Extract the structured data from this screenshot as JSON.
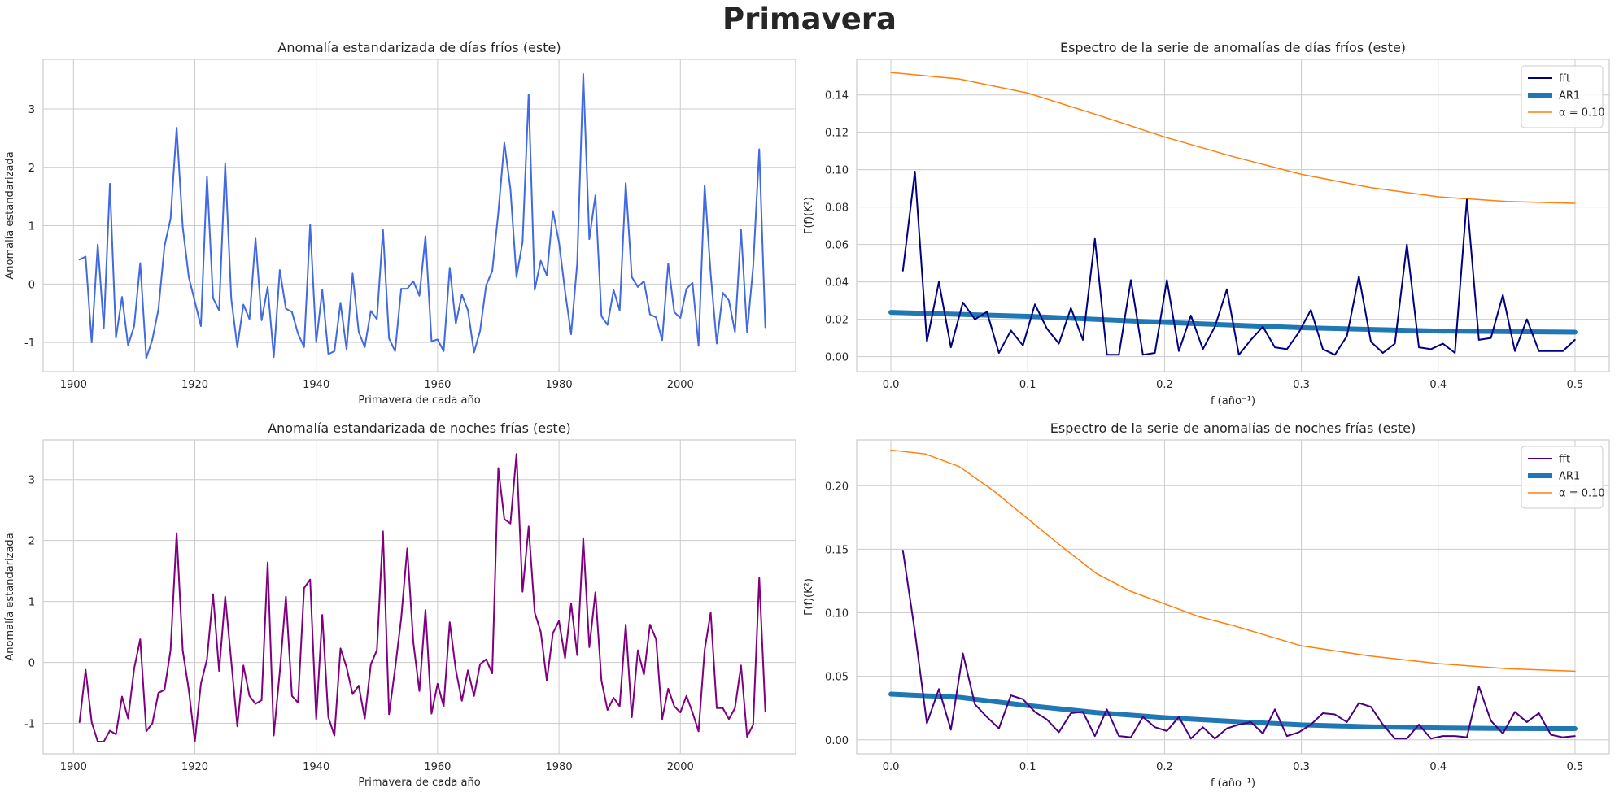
{
  "figure": {
    "title": "Primavera"
  },
  "colors": {
    "panel0": "#4169e1",
    "panel2": "#800080",
    "fft1": "#000080",
    "fft3": "#4b0082",
    "ar1": "#1f77b4",
    "alpha": "#ff7f0e",
    "grid": "#cccccc",
    "frame": "#cccccc"
  },
  "chart_data": [
    {
      "type": "line",
      "title": "Anomalía estandarizada de días fríos (este)",
      "xlabel": "Primavera de cada año",
      "ylabel": "Anomalía estandarizada",
      "xlim": [
        1895,
        2019
      ],
      "ylim": [
        -1.5,
        3.85
      ],
      "xticks": [
        1900,
        1920,
        1940,
        1960,
        1980,
        2000
      ],
      "yticks": [
        -1,
        0,
        1,
        2,
        3
      ],
      "grid": true,
      "series": [
        {
          "x_start": 1901,
          "x_step": 1,
          "values": [
            0.42,
            0.47,
            -1.0,
            0.68,
            -0.75,
            1.72,
            -0.92,
            -0.22,
            -1.05,
            -0.72,
            0.36,
            -1.27,
            -0.95,
            -0.43,
            0.65,
            1.12,
            2.68,
            0.98,
            0.12,
            -0.3,
            -0.72,
            1.84,
            -0.24,
            -0.45,
            2.06,
            -0.25,
            -1.08,
            -0.35,
            -0.6,
            0.78,
            -0.62,
            -0.05,
            -1.25,
            0.24,
            -0.42,
            -0.48,
            -0.85,
            -1.08,
            1.02,
            -1.0,
            -0.1,
            -1.2,
            -1.15,
            -0.32,
            -1.12,
            0.18,
            -0.82,
            -1.08,
            -0.46,
            -0.6,
            0.93,
            -0.93,
            -1.15,
            -0.08,
            -0.08,
            0.05,
            -0.2,
            0.82,
            -0.98,
            -0.95,
            -1.15,
            0.28,
            -0.68,
            -0.18,
            -0.45,
            -1.17,
            -0.8,
            -0.02,
            0.22,
            1.22,
            2.42,
            1.63,
            0.12,
            0.72,
            3.25,
            -0.1,
            0.4,
            0.15,
            1.25,
            0.72,
            -0.12,
            -0.86,
            0.35,
            3.6,
            0.77,
            1.52,
            -0.55,
            -0.7,
            -0.1,
            -0.45,
            1.73,
            0.12,
            -0.05,
            0.05,
            -0.52,
            -0.57,
            -0.96,
            0.35,
            -0.48,
            -0.58,
            -0.08,
            0.02,
            -1.06,
            1.69,
            0.17,
            -1.02,
            -0.15,
            -0.28,
            -0.82,
            0.93,
            -0.83,
            0.3,
            2.31,
            -0.74
          ]
        }
      ]
    },
    {
      "type": "line",
      "title": "Espectro de la serie de anomalías de días fríos (este)",
      "xlabel": "f (año⁻¹)",
      "ylabel": "Γ(f)(K²)",
      "xlim": [
        -0.025,
        0.525
      ],
      "ylim": [
        -0.008,
        0.159
      ],
      "xticks": [
        0.0,
        0.1,
        0.2,
        0.3,
        0.4,
        0.5
      ],
      "yticks": [
        0.0,
        0.02,
        0.04,
        0.06,
        0.08,
        0.1,
        0.12,
        0.14
      ],
      "grid": true,
      "legend_position": "top-right",
      "legend": [
        "fft",
        "AR1",
        "α = 0.10"
      ],
      "fft": {
        "x_start": 0.00877,
        "x_step": 0.00877,
        "values": [
          0.046,
          0.099,
          0.008,
          0.04,
          0.005,
          0.029,
          0.02,
          0.024,
          0.002,
          0.014,
          0.006,
          0.028,
          0.015,
          0.007,
          0.026,
          0.009,
          0.063,
          0.001,
          0.001,
          0.041,
          0.001,
          0.002,
          0.041,
          0.003,
          0.022,
          0.004,
          0.016,
          0.036,
          0.001,
          0.009,
          0.016,
          0.005,
          0.004,
          0.013,
          0.025,
          0.004,
          0.001,
          0.011,
          0.043,
          0.008,
          0.002,
          0.007,
          0.06,
          0.005,
          0.004,
          0.007,
          0.002,
          0.084,
          0.009,
          0.01,
          0.033,
          0.003,
          0.02,
          0.003,
          0.003,
          0.003,
          0.009
        ]
      },
      "ar1": {
        "x": [
          0.0,
          0.1,
          0.2,
          0.3,
          0.4,
          0.5
        ],
        "values": [
          0.0237,
          0.0216,
          0.0183,
          0.0155,
          0.0137,
          0.0131
        ]
      },
      "alpha": {
        "x": [
          0.0,
          0.05,
          0.1,
          0.15,
          0.2,
          0.25,
          0.3,
          0.35,
          0.4,
          0.45,
          0.5
        ],
        "values": [
          0.152,
          0.1485,
          0.141,
          0.1295,
          0.1175,
          0.107,
          0.0975,
          0.0905,
          0.0855,
          0.083,
          0.082
        ]
      }
    },
    {
      "type": "line",
      "title": "Anomalía estandarizada de noches frías (este)",
      "xlabel": "Primavera de cada año",
      "ylabel": "Anomalía estandarizada",
      "xlim": [
        1895,
        2019
      ],
      "ylim": [
        -1.5,
        3.65
      ],
      "xticks": [
        1900,
        1920,
        1940,
        1960,
        1980,
        2000
      ],
      "yticks": [
        -1,
        0,
        1,
        2,
        3
      ],
      "grid": true,
      "series": [
        {
          "x_start": 1901,
          "x_step": 1,
          "values": [
            -0.98,
            -0.12,
            -0.98,
            -1.3,
            -1.3,
            -1.12,
            -1.18,
            -0.56,
            -0.92,
            -0.1,
            0.38,
            -1.13,
            -1.0,
            -0.5,
            -0.45,
            0.2,
            2.12,
            0.2,
            -0.45,
            -1.3,
            -0.35,
            0.05,
            1.12,
            -0.14,
            1.08,
            0.02,
            -1.05,
            -0.05,
            -0.55,
            -0.68,
            -0.62,
            1.64,
            -1.2,
            -0.15,
            1.08,
            -0.55,
            -0.66,
            1.22,
            1.36,
            -0.93,
            0.78,
            -0.9,
            -1.2,
            0.23,
            -0.08,
            -0.52,
            -0.38,
            -0.92,
            -0.03,
            0.2,
            2.15,
            -0.85,
            -0.1,
            0.72,
            1.87,
            0.33,
            -0.47,
            0.86,
            -0.84,
            -0.35,
            -0.72,
            0.66,
            -0.12,
            -0.63,
            -0.13,
            -0.55,
            -0.03,
            0.05,
            -0.18,
            3.19,
            2.35,
            2.28,
            3.42,
            1.16,
            2.23,
            0.82,
            0.5,
            -0.3,
            0.48,
            0.68,
            0.07,
            0.97,
            0.12,
            2.04,
            0.25,
            1.15,
            -0.3,
            -0.78,
            -0.58,
            -0.72,
            0.62,
            -0.9,
            0.2,
            -0.2,
            0.62,
            0.38,
            -0.93,
            -0.43,
            -0.72,
            -0.82,
            -0.55,
            -0.82,
            -1.13,
            0.2,
            0.82,
            -0.75,
            -0.75,
            -0.93,
            -0.75,
            -0.05,
            -1.22,
            -1.02,
            1.39,
            -0.8
          ]
        }
      ]
    },
    {
      "type": "line",
      "title": "Espectro de la serie de anomalías de noches frías (este)",
      "xlabel": "f (año⁻¹)",
      "ylabel": "Γ(f)(K²)",
      "xlim": [
        -0.025,
        0.525
      ],
      "ylim": [
        -0.011,
        0.236
      ],
      "xticks": [
        0.0,
        0.1,
        0.2,
        0.3,
        0.4,
        0.5
      ],
      "yticks": [
        0.0,
        0.05,
        0.1,
        0.15,
        0.2
      ],
      "grid": true,
      "legend_position": "top-right",
      "legend": [
        "fft",
        "AR1",
        "α = 0.10"
      ],
      "fft": {
        "x_start": 0.00877,
        "x_step": 0.00877,
        "values": [
          0.149,
          0.085,
          0.013,
          0.04,
          0.008,
          0.068,
          0.028,
          0.018,
          0.009,
          0.035,
          0.032,
          0.022,
          0.016,
          0.006,
          0.021,
          0.022,
          0.003,
          0.024,
          0.003,
          0.002,
          0.018,
          0.01,
          0.007,
          0.018,
          0.001,
          0.01,
          0.001,
          0.009,
          0.012,
          0.014,
          0.005,
          0.024,
          0.003,
          0.006,
          0.012,
          0.021,
          0.02,
          0.014,
          0.029,
          0.026,
          0.012,
          0.001,
          0.001,
          0.012,
          0.001,
          0.003,
          0.003,
          0.002,
          0.042,
          0.015,
          0.005,
          0.022,
          0.014,
          0.021,
          0.004,
          0.002,
          0.003
        ]
      },
      "ar1": {
        "x": [
          0.0,
          0.05,
          0.1,
          0.15,
          0.2,
          0.25,
          0.3,
          0.35,
          0.4,
          0.45,
          0.5
        ],
        "values": [
          0.036,
          0.0335,
          0.027,
          0.0215,
          0.0175,
          0.0145,
          0.0118,
          0.0103,
          0.0094,
          0.0089,
          0.0088
        ]
      },
      "alpha": {
        "x": [
          0.0,
          0.025,
          0.05,
          0.075,
          0.1,
          0.125,
          0.15,
          0.175,
          0.2,
          0.225,
          0.25,
          0.275,
          0.3,
          0.35,
          0.4,
          0.45,
          0.5
        ],
        "values": [
          0.228,
          0.225,
          0.215,
          0.196,
          0.174,
          0.152,
          0.131,
          0.117,
          0.107,
          0.097,
          0.09,
          0.082,
          0.074,
          0.066,
          0.06,
          0.056,
          0.054
        ]
      }
    }
  ]
}
